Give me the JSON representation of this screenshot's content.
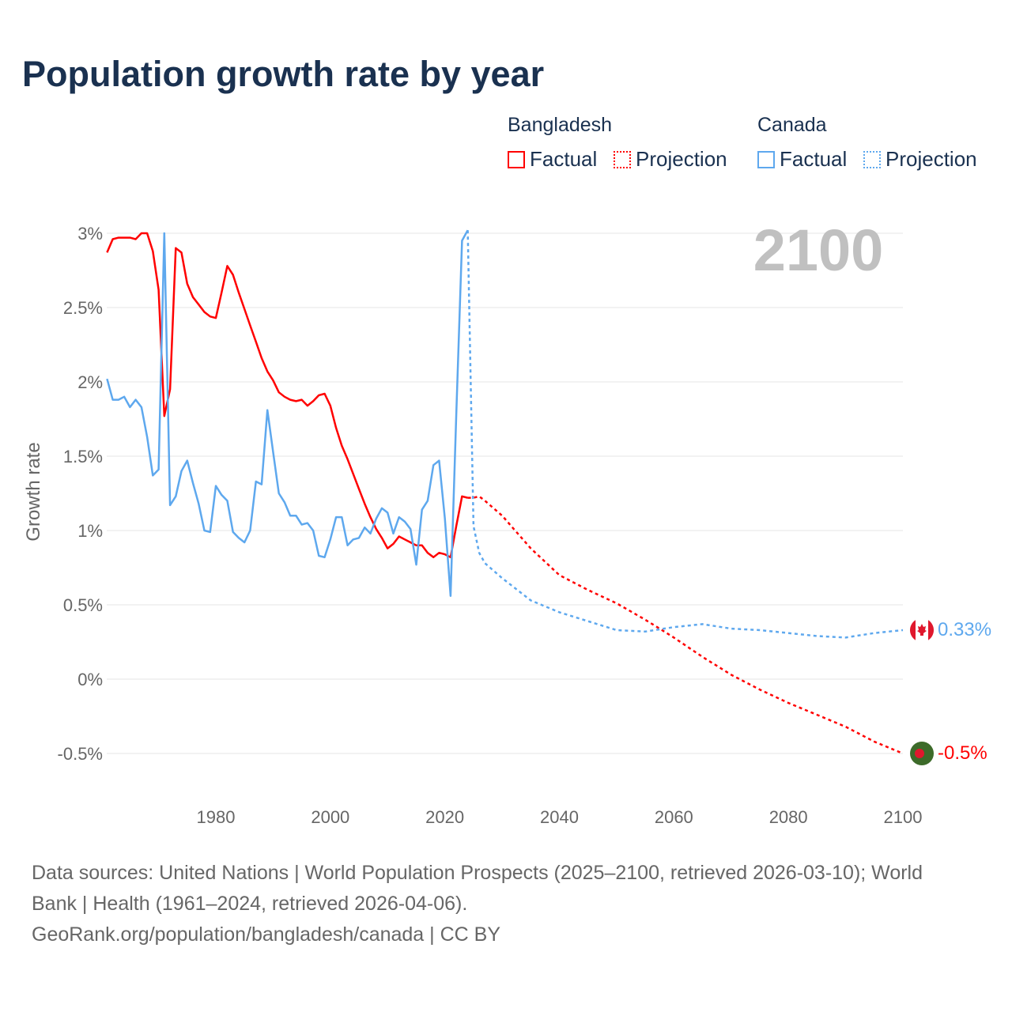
{
  "title": "Population growth rate by year",
  "legend": {
    "groups": [
      {
        "name": "Bangladesh",
        "factual": "Factual",
        "projection": "Projection",
        "color": "#ff0000"
      },
      {
        "name": "Canada",
        "factual": "Factual",
        "projection": "Projection",
        "color": "#5ea8ee"
      }
    ]
  },
  "year_display": "2100",
  "end_labels": {
    "canada": "0.33%",
    "bangladesh": "-0.5%"
  },
  "footer": {
    "line1": "Data sources: United Nations | World Population Prospects (2025–2100, retrieved 2026-03-10); World",
    "line2": "Bank | Health (1961–2024, retrieved 2026-04-06).",
    "line3": "GeoRank.org/population/bangladesh/canada | CC BY"
  },
  "chart_data": {
    "type": "line",
    "title": "Population growth rate by year",
    "ylabel": "Growth rate",
    "xlabel": "",
    "xlim": [
      1961,
      2100
    ],
    "ylim": [
      -0.5,
      3
    ],
    "grid": true,
    "legend_position": "top-right",
    "x_ticks": [
      1980,
      2000,
      2020,
      2040,
      2060,
      2080,
      2100
    ],
    "x_tick_labels": [
      "1980",
      "2000",
      "2020",
      "2040",
      "2060",
      "2080",
      "2100"
    ],
    "y_ticks": [
      3,
      2.5,
      2,
      1.5,
      1,
      0.5,
      0,
      -0.5
    ],
    "y_tick_labels": [
      "3%",
      "2.5%",
      "2%",
      "1.5%",
      "1%",
      "0.5%",
      "0%",
      "-0.5%"
    ],
    "series": [
      {
        "name": "Bangladesh Factual",
        "style": "solid",
        "color": "#ff0000",
        "x_start": 1961,
        "values": [
          2.87,
          2.96,
          2.97,
          2.97,
          2.97,
          2.96,
          3.0,
          3.0,
          2.88,
          2.62,
          1.77,
          1.95,
          2.9,
          2.87,
          2.66,
          2.57,
          2.52,
          2.47,
          2.44,
          2.43,
          2.6,
          2.78,
          2.72,
          2.6,
          2.49,
          2.38,
          2.27,
          2.16,
          2.07,
          2.01,
          1.93,
          1.9,
          1.88,
          1.87,
          1.88,
          1.84,
          1.87,
          1.91,
          1.92,
          1.84,
          1.69,
          1.57,
          1.48,
          1.38,
          1.28,
          1.18,
          1.09,
          1.01,
          0.95,
          0.88,
          0.91,
          0.96,
          0.94,
          0.92,
          0.9,
          0.9,
          0.85,
          0.82,
          0.85,
          0.84,
          0.82,
          1.03,
          1.23,
          1.22
        ]
      },
      {
        "name": "Bangladesh Projection",
        "style": "dotted",
        "color": "#ff0000",
        "x": [
          2024,
          2025,
          2026,
          2027,
          2030,
          2035,
          2040,
          2045,
          2050,
          2055,
          2060,
          2065,
          2070,
          2075,
          2080,
          2085,
          2090,
          2095,
          2100
        ],
        "values": [
          1.22,
          1.22,
          1.23,
          1.2,
          1.1,
          0.88,
          0.7,
          0.6,
          0.51,
          0.4,
          0.28,
          0.15,
          0.03,
          -0.07,
          -0.16,
          -0.24,
          -0.32,
          -0.42,
          -0.5
        ]
      },
      {
        "name": "Canada Factual",
        "style": "solid",
        "color": "#5ea8ee",
        "x_start": 1961,
        "values": [
          2.02,
          1.88,
          1.88,
          1.9,
          1.83,
          1.88,
          1.83,
          1.63,
          1.37,
          1.41,
          3.0,
          1.17,
          1.23,
          1.4,
          1.47,
          1.32,
          1.18,
          1.0,
          0.99,
          1.3,
          1.24,
          1.2,
          0.99,
          0.95,
          0.92,
          1.0,
          1.33,
          1.31,
          1.81,
          1.53,
          1.25,
          1.19,
          1.1,
          1.1,
          1.04,
          1.05,
          1.0,
          0.83,
          0.82,
          0.94,
          1.09,
          1.09,
          0.9,
          0.94,
          0.95,
          1.02,
          0.98,
          1.08,
          1.15,
          1.12,
          0.98,
          1.09,
          1.06,
          1.01,
          0.77,
          1.14,
          1.2,
          1.44,
          1.47,
          1.08,
          0.56,
          1.78,
          2.95,
          3.02
        ]
      },
      {
        "name": "Canada Projection",
        "style": "dotted",
        "color": "#5ea8ee",
        "x": [
          2024,
          2025,
          2026,
          2027,
          2030,
          2035,
          2040,
          2045,
          2050,
          2055,
          2060,
          2065,
          2070,
          2075,
          2080,
          2085,
          2090,
          2095,
          2100
        ],
        "values": [
          3.02,
          1.03,
          0.85,
          0.78,
          0.68,
          0.53,
          0.45,
          0.39,
          0.33,
          0.32,
          0.35,
          0.37,
          0.34,
          0.33,
          0.31,
          0.29,
          0.28,
          0.31,
          0.33
        ]
      }
    ]
  }
}
